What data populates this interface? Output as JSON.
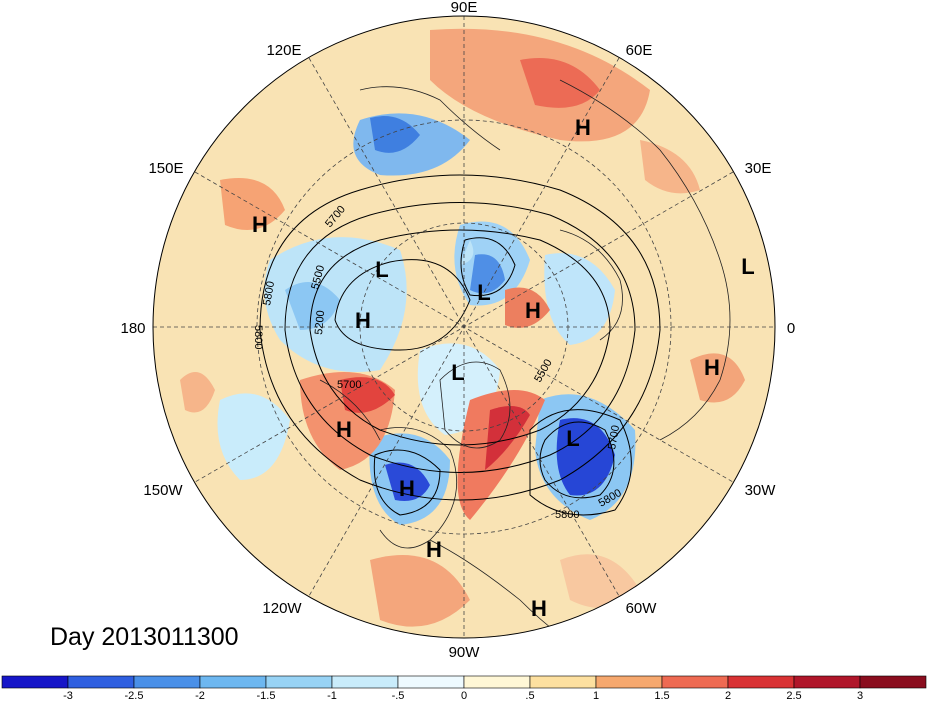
{
  "title": "Day 2013011300",
  "longitude_labels": [
    "90E",
    "60E",
    "30E",
    "0",
    "30W",
    "60W",
    "90W",
    "120W",
    "150W",
    "180",
    "150E",
    "120E"
  ],
  "pressure_systems": [
    {
      "type": "H"
    },
    {
      "type": "H"
    },
    {
      "type": "L"
    },
    {
      "type": "L"
    },
    {
      "type": "H"
    },
    {
      "type": "L"
    },
    {
      "type": "H"
    },
    {
      "type": "H"
    },
    {
      "type": "L"
    },
    {
      "type": "H"
    },
    {
      "type": "L"
    },
    {
      "type": "H"
    },
    {
      "type": "H"
    },
    {
      "type": "H"
    }
  ],
  "contour_labels": [
    "5700",
    "5500",
    "5800",
    "5200",
    "5800",
    "5700",
    "5500",
    "5700",
    "5800",
    "5800"
  ],
  "colorbar": {
    "ticks": [
      "-3",
      "-2.5",
      "-2",
      "-1.5",
      "-1",
      "-.5",
      "0",
      ".5",
      "1",
      "1.5",
      "2",
      "2.5",
      "3"
    ],
    "colors": [
      "#1616c8",
      "#2f5fe0",
      "#4a90e8",
      "#6db7f0",
      "#98d3f5",
      "#c9ecfb",
      "#eefaff",
      "#fff7d6",
      "#fde0a0",
      "#f6a86e",
      "#ee6a52",
      "#d93234",
      "#b0162a",
      "#8a0d1e"
    ]
  }
}
